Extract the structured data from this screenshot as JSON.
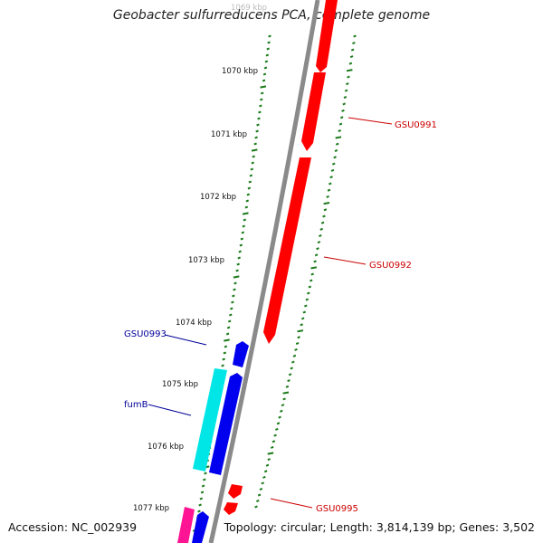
{
  "title": "Geobacter sulfurreducens PCA, complete genome",
  "accession": "Accession: NC_002939",
  "summary": "Topology: circular; Length: 3,814,139 bp; Genes: 3,502",
  "colors": {
    "backbone": "#8a8a8a",
    "ticks": "#1a7a1a",
    "forward_gene": "#ff0000",
    "reverse_gene": "#0000ee",
    "fumB_gene": "#00e6e6",
    "pink_gene": "#ff1493",
    "forward_label": "#cc0000",
    "reverse_label": "#000099"
  },
  "scale_labels": [
    {
      "text": "1069 kbp",
      "faded": true
    },
    {
      "text": "1070 kbp",
      "faded": false
    },
    {
      "text": "1071 kbp",
      "faded": false
    },
    {
      "text": "1072 kbp",
      "faded": false
    },
    {
      "text": "1073 kbp",
      "faded": false
    },
    {
      "text": "1074 kbp",
      "faded": false
    },
    {
      "text": "1075 kbp",
      "faded": false
    },
    {
      "text": "1076 kbp",
      "faded": false
    },
    {
      "text": "1077 kbp",
      "faded": false
    }
  ],
  "gene_labels": [
    {
      "text": "GSU0991",
      "strand": "forward"
    },
    {
      "text": "GSU0992",
      "strand": "forward"
    },
    {
      "text": "GSU0993",
      "strand": "reverse"
    },
    {
      "text": "fumB",
      "strand": "reverse"
    },
    {
      "text": "GSU0995",
      "strand": "forward"
    }
  ]
}
